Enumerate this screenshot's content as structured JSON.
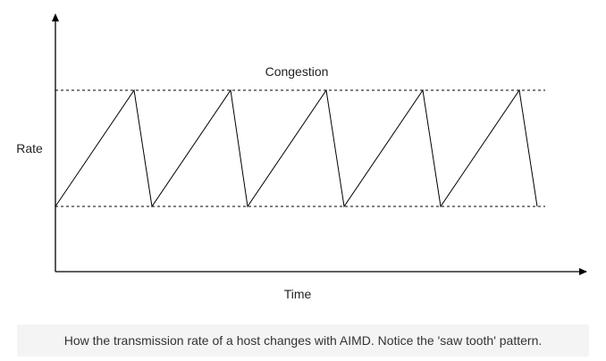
{
  "diagram": {
    "congestion_label": "Congestion",
    "y_axis_label": "Rate",
    "x_axis_label": "Time"
  },
  "caption": "How the transmission rate of a host changes with AIMD. Notice the 'saw tooth' pattern.",
  "colors": {
    "line": "#000000",
    "caption_bg": "#f4f4f4",
    "caption_text": "#333333"
  }
}
